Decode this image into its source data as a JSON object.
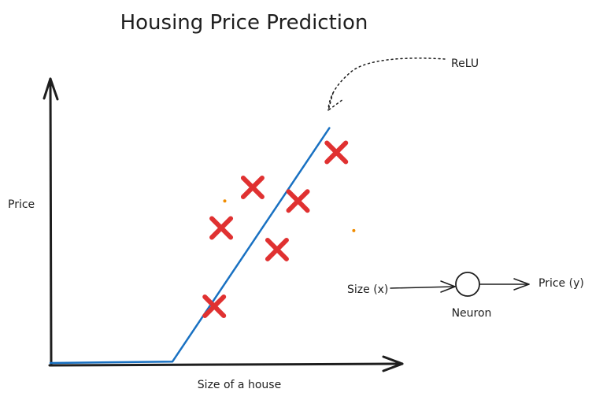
{
  "chart_data": {
    "type": "scatter",
    "title": "Housing Price Prediction",
    "xlabel": "Size of a house",
    "ylabel": "Price",
    "grid": false,
    "series": [
      {
        "kind": "points",
        "marker": "x",
        "color": "#e03131",
        "points": [
          {
            "x": 0.47,
            "y": 0.21
          },
          {
            "x": 0.49,
            "y": 0.5
          },
          {
            "x": 0.58,
            "y": 0.65
          },
          {
            "x": 0.65,
            "y": 0.42
          },
          {
            "x": 0.71,
            "y": 0.6
          },
          {
            "x": 0.82,
            "y": 0.78
          }
        ]
      },
      {
        "kind": "line",
        "color": "#1971c2",
        "points": [
          {
            "x": 0.0,
            "y": 0.0
          },
          {
            "x": 0.35,
            "y": 0.005
          },
          {
            "x": 0.8,
            "y": 0.87
          }
        ]
      }
    ],
    "dots": [
      {
        "x": 0.5,
        "y": 0.6
      },
      {
        "x": 0.87,
        "y": 0.49
      }
    ],
    "annotation": {
      "text": "ReLU"
    }
  },
  "neuron_diagram": {
    "input": "Size (x)",
    "node": "Neuron",
    "output": "Price (y)"
  },
  "colors": {
    "axis": "#1e1e1e",
    "marker": "#e03131",
    "line": "#1971c2",
    "dot": "#f08c00"
  }
}
